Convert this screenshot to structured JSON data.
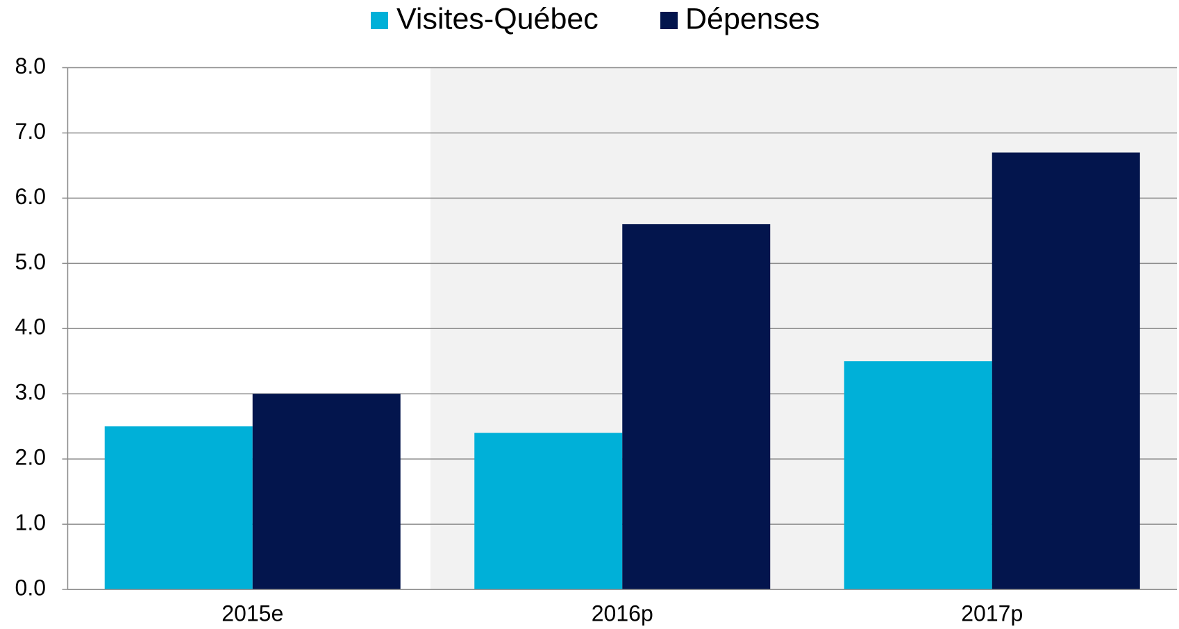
{
  "chart_data": {
    "type": "bar",
    "categories": [
      "2015e",
      "2016p",
      "2017p"
    ],
    "series": [
      {
        "name": "Visites-Québec",
        "color": "#00b0d8",
        "values": [
          2.5,
          2.4,
          3.5
        ]
      },
      {
        "name": "Dépenses",
        "color": "#03154d",
        "values": [
          3.0,
          5.6,
          6.7
        ]
      }
    ],
    "ylim": [
      0,
      8
    ],
    "yticks": [
      {
        "value": 0,
        "label": "0.0"
      },
      {
        "value": 1,
        "label": "1.0"
      },
      {
        "value": 2,
        "label": "2.0"
      },
      {
        "value": 3,
        "label": "3.0"
      },
      {
        "value": 4,
        "label": "4.0"
      },
      {
        "value": 5,
        "label": "5.0"
      },
      {
        "value": 6,
        "label": "6.0"
      },
      {
        "value": 7,
        "label": "7.0"
      },
      {
        "value": 8,
        "label": "8.0"
      }
    ],
    "grid": true
  }
}
